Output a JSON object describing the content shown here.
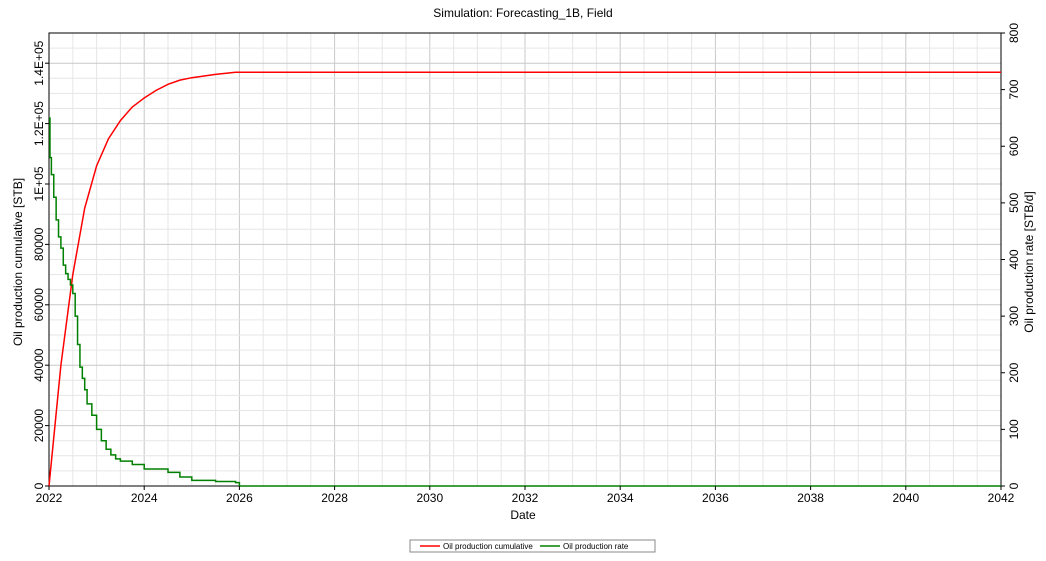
{
  "chart_data": {
    "type": "line",
    "title": "Simulation: Forecasting_1B, Field",
    "xlabel": "Date",
    "x_ticks": [
      "2022",
      "2024",
      "2026",
      "2028",
      "2030",
      "2032",
      "2034",
      "2036",
      "2038",
      "2040",
      "2042"
    ],
    "xlim": [
      2022,
      2042
    ],
    "y_left": {
      "label": "Oil production cumulative [STB]",
      "ylim": [
        0,
        150000
      ],
      "ticks": [
        {
          "value": 0,
          "label": "0"
        },
        {
          "value": 20000,
          "label": "20000"
        },
        {
          "value": 40000,
          "label": "40000"
        },
        {
          "value": 60000,
          "label": "60000"
        },
        {
          "value": 80000,
          "label": "80000"
        },
        {
          "value": 100000,
          "label": "1E+05"
        },
        {
          "value": 120000,
          "label": "1.2E+05"
        },
        {
          "value": 140000,
          "label": "1.4E+05"
        }
      ]
    },
    "y_right": {
      "label": "Oil production rate [STB/d]",
      "ylim": [
        0,
        800
      ],
      "ticks": [
        {
          "value": 0,
          "label": "0"
        },
        {
          "value": 100,
          "label": "100"
        },
        {
          "value": 200,
          "label": "200"
        },
        {
          "value": 300,
          "label": "300"
        },
        {
          "value": 400,
          "label": "400"
        },
        {
          "value": 500,
          "label": "500"
        },
        {
          "value": 600,
          "label": "600"
        },
        {
          "value": 700,
          "label": "700"
        },
        {
          "value": 800,
          "label": "800"
        }
      ]
    },
    "grid": true,
    "legend_position": "bottom-center",
    "series": [
      {
        "name": "Oil production cumulative",
        "axis": "left",
        "color": "#ff0000",
        "step": false,
        "x": [
          2022.0,
          2022.25,
          2022.5,
          2022.75,
          2023.0,
          2023.25,
          2023.5,
          2023.75,
          2024.0,
          2024.25,
          2024.5,
          2024.75,
          2025.0,
          2025.5,
          2025.92,
          2026.0,
          2042.0
        ],
        "y": [
          0,
          40000,
          70000,
          92000,
          106000,
          115000,
          121000,
          125500,
          128500,
          131000,
          133000,
          134400,
          135200,
          136300,
          137000,
          137000,
          137000
        ]
      },
      {
        "name": "Oil production rate",
        "axis": "right",
        "color": "#008000",
        "step": true,
        "x": [
          2022.0,
          2022.02,
          2022.05,
          2022.1,
          2022.15,
          2022.2,
          2022.25,
          2022.3,
          2022.35,
          2022.4,
          2022.45,
          2022.5,
          2022.55,
          2022.6,
          2022.65,
          2022.7,
          2022.75,
          2022.8,
          2022.9,
          2023.0,
          2023.1,
          2023.2,
          2023.3,
          2023.4,
          2023.5,
          2023.75,
          2024.0,
          2024.5,
          2024.75,
          2025.0,
          2025.5,
          2025.92,
          2026.0,
          2042.0
        ],
        "y": [
          650,
          580,
          550,
          510,
          470,
          440,
          420,
          390,
          375,
          365,
          355,
          340,
          300,
          250,
          210,
          190,
          170,
          145,
          125,
          100,
          80,
          65,
          55,
          48,
          44,
          38,
          30,
          24,
          16,
          10,
          8,
          6,
          0,
          0
        ]
      }
    ]
  }
}
